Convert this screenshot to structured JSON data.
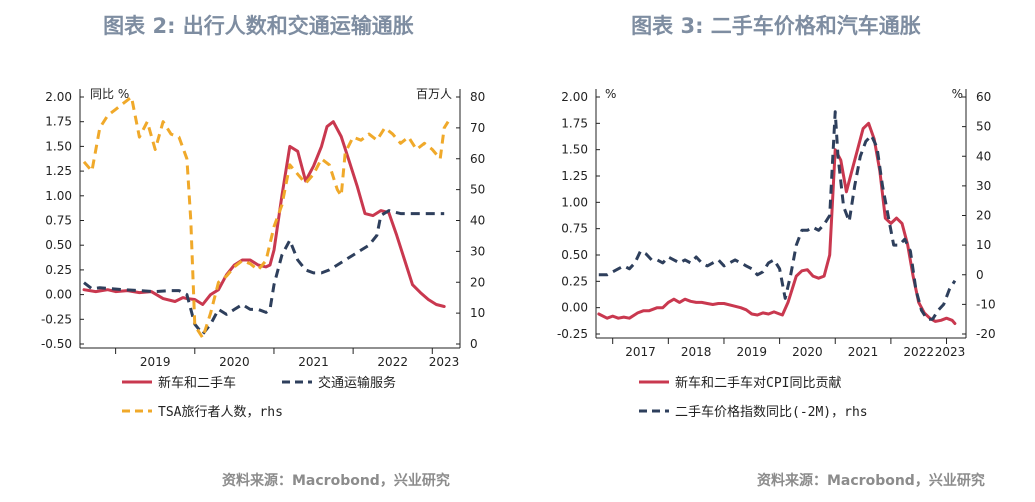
{
  "chart_data": [
    {
      "type": "line",
      "title": "图表 2:  出行人数和交通运输通胀",
      "source": "资料来源：Macrobond，兴业研究",
      "left_unit": "同比 %",
      "right_unit": "百万人",
      "ylim": [
        -0.5,
        2.0
      ],
      "y_ticks": [
        "2.00",
        "1.75",
        "1.50",
        "1.25",
        "1.00",
        "0.75",
        "0.50",
        "0.25",
        "0.00",
        "-0.25",
        "-0.50"
      ],
      "y2lim": [
        0,
        80
      ],
      "y2_ticks": [
        "80",
        "70",
        "60",
        "50",
        "40",
        "30",
        "20",
        "10",
        "0"
      ],
      "x_ticks": [
        "2019",
        "2020",
        "2021",
        "2022",
        "2023"
      ],
      "grid": false,
      "legend_position": "bottom",
      "series": [
        {
          "name": "新车和二手车",
          "axis": "left",
          "color": "#c9384f",
          "dash": "solid",
          "x": [
            2018.6,
            2018.75,
            2018.9,
            2019.0,
            2019.15,
            2019.3,
            2019.45,
            2019.6,
            2019.75,
            2019.85,
            2019.9,
            2020.0,
            2020.1,
            2020.2,
            2020.3,
            2020.4,
            2020.5,
            2020.6,
            2020.7,
            2020.8,
            2020.9,
            2020.95,
            2021.0,
            2021.1,
            2021.2,
            2021.3,
            2021.4,
            2021.5,
            2021.6,
            2021.67,
            2021.75,
            2021.85,
            2021.95,
            2022.05,
            2022.15,
            2022.25,
            2022.35,
            2022.45,
            2022.55,
            2022.65,
            2022.75,
            2022.85,
            2022.95,
            2023.05,
            2023.15
          ],
          "y": [
            0.05,
            0.03,
            0.05,
            0.03,
            0.04,
            0.02,
            0.03,
            -0.04,
            -0.07,
            -0.03,
            -0.04,
            -0.05,
            -0.1,
            0.0,
            0.05,
            0.2,
            0.3,
            0.35,
            0.35,
            0.3,
            0.28,
            0.3,
            0.45,
            1.0,
            1.5,
            1.45,
            1.15,
            1.3,
            1.5,
            1.7,
            1.75,
            1.6,
            1.35,
            1.1,
            0.82,
            0.8,
            0.85,
            0.83,
            0.6,
            0.35,
            0.1,
            0.02,
            -0.05,
            -0.1,
            -0.12
          ]
        },
        {
          "name": "交通运输服务",
          "axis": "left",
          "color": "#2e3f5c",
          "dash": "dashed",
          "x": [
            2018.6,
            2018.7,
            2018.8,
            2018.95,
            2019.1,
            2019.3,
            2019.5,
            2019.7,
            2019.8,
            2019.9,
            2020.0,
            2020.1,
            2020.2,
            2020.3,
            2020.4,
            2020.5,
            2020.6,
            2020.7,
            2020.8,
            2020.9,
            2020.95,
            2021.0,
            2021.1,
            2021.2,
            2021.3,
            2021.4,
            2021.5,
            2021.6,
            2021.7,
            2021.8,
            2021.9,
            2022.0,
            2022.1,
            2022.2,
            2022.3,
            2022.35,
            2022.45,
            2022.6,
            2022.8,
            2023.0,
            2023.15
          ],
          "y": [
            0.12,
            0.06,
            0.07,
            0.06,
            0.05,
            0.04,
            0.03,
            0.04,
            0.04,
            0.0,
            -0.3,
            -0.4,
            -0.3,
            -0.15,
            -0.2,
            -0.15,
            -0.1,
            -0.15,
            -0.15,
            -0.18,
            -0.15,
            0.1,
            0.4,
            0.55,
            0.35,
            0.25,
            0.22,
            0.22,
            0.25,
            0.3,
            0.35,
            0.4,
            0.45,
            0.5,
            0.6,
            0.8,
            0.85,
            0.82,
            0.82,
            0.82,
            0.82
          ]
        },
        {
          "name": "TSA旅行者人数，rhs",
          "axis": "right",
          "color": "#f0a92a",
          "dash": "dashed",
          "x": [
            2018.6,
            2018.7,
            2018.8,
            2018.9,
            2019.0,
            2019.1,
            2019.2,
            2019.3,
            2019.4,
            2019.5,
            2019.6,
            2019.7,
            2019.8,
            2019.9,
            2019.95,
            2020.0,
            2020.1,
            2020.2,
            2020.3,
            2020.4,
            2020.5,
            2020.6,
            2020.7,
            2020.8,
            2020.9,
            2021.0,
            2021.1,
            2021.2,
            2021.3,
            2021.4,
            2021.5,
            2021.6,
            2021.7,
            2021.8,
            2021.85,
            2021.9,
            2022.0,
            2022.1,
            2022.2,
            2022.3,
            2022.4,
            2022.5,
            2022.6,
            2022.7,
            2022.8,
            2022.9,
            2023.0,
            2023.1,
            2023.15,
            2023.2
          ],
          "y": [
            59,
            56,
            70,
            74,
            76,
            78,
            80,
            67,
            72,
            63,
            72,
            68,
            67,
            60,
            40,
            6,
            2,
            10,
            20,
            22,
            25,
            27,
            26,
            24,
            27,
            38,
            45,
            58,
            55,
            52,
            55,
            60,
            58,
            50,
            48,
            62,
            67,
            66,
            68,
            66,
            70,
            68,
            65,
            67,
            63,
            65,
            63,
            60,
            70,
            72
          ]
        }
      ]
    },
    {
      "type": "line",
      "title": "图表 3:  二手车价格和汽车通胀",
      "source": "资料来源：Macrobond，兴业研究",
      "left_unit": "%",
      "right_unit": "%",
      "ylim": [
        -0.25,
        2.0
      ],
      "y_ticks": [
        "2.00",
        "1.75",
        "1.50",
        "1.25",
        "1.00",
        "0.75",
        "0.50",
        "0.25",
        "0.00",
        "-0.25"
      ],
      "y2lim": [
        -20,
        60
      ],
      "y2_ticks": [
        "60",
        "50",
        "40",
        "30",
        "20",
        "10",
        "0",
        "-10",
        "-20"
      ],
      "x_ticks": [
        "2017",
        "2018",
        "2019",
        "2020",
        "2021",
        "2022",
        "2023"
      ],
      "grid": false,
      "legend_position": "bottom",
      "series": [
        {
          "name": "新车和二手车对CPI同比贡献",
          "axis": "left",
          "color": "#c9384f",
          "dash": "solid",
          "x": [
            2016.75,
            2016.9,
            2017.0,
            2017.1,
            2017.2,
            2017.3,
            2017.45,
            2017.55,
            2017.65,
            2017.8,
            2017.9,
            2018.0,
            2018.1,
            2018.2,
            2018.3,
            2018.4,
            2018.5,
            2018.6,
            2018.7,
            2018.8,
            2018.9,
            2019.0,
            2019.15,
            2019.3,
            2019.4,
            2019.5,
            2019.6,
            2019.7,
            2019.8,
            2019.9,
            2020.0,
            2020.05,
            2020.15,
            2020.3,
            2020.4,
            2020.5,
            2020.6,
            2020.7,
            2020.8,
            2020.9,
            2021.0,
            2021.1,
            2021.2,
            2021.3,
            2021.4,
            2021.5,
            2021.6,
            2021.7,
            2021.8,
            2021.9,
            2022.0,
            2022.1,
            2022.2,
            2022.3,
            2022.4,
            2022.5,
            2022.6,
            2022.7,
            2022.8,
            2022.9,
            2023.0,
            2023.1,
            2023.15
          ],
          "y": [
            -0.06,
            -0.1,
            -0.08,
            -0.1,
            -0.09,
            -0.1,
            -0.05,
            -0.03,
            -0.03,
            0.0,
            0.0,
            0.05,
            0.08,
            0.05,
            0.08,
            0.06,
            0.05,
            0.05,
            0.04,
            0.03,
            0.04,
            0.04,
            0.02,
            0.0,
            -0.02,
            -0.06,
            -0.07,
            -0.05,
            -0.06,
            -0.04,
            -0.06,
            -0.07,
            0.05,
            0.3,
            0.35,
            0.36,
            0.3,
            0.28,
            0.3,
            0.5,
            1.5,
            1.4,
            1.1,
            1.3,
            1.5,
            1.7,
            1.75,
            1.6,
            1.3,
            0.85,
            0.8,
            0.85,
            0.8,
            0.6,
            0.3,
            0.05,
            -0.05,
            -0.1,
            -0.13,
            -0.12,
            -0.1,
            -0.12,
            -0.15
          ]
        },
        {
          "name": "二手车价格指数同比(-2M)，rhs",
          "axis": "right",
          "color": "#2e3f5c",
          "dash": "dashed",
          "x": [
            2016.75,
            2016.9,
            2017.0,
            2017.1,
            2017.2,
            2017.3,
            2017.4,
            2017.5,
            2017.6,
            2017.7,
            2017.8,
            2017.9,
            2018.0,
            2018.1,
            2018.2,
            2018.3,
            2018.4,
            2018.5,
            2018.6,
            2018.7,
            2018.8,
            2018.9,
            2019.0,
            2019.1,
            2019.2,
            2019.3,
            2019.4,
            2019.5,
            2019.6,
            2019.7,
            2019.8,
            2019.9,
            2020.0,
            2020.1,
            2020.2,
            2020.3,
            2020.4,
            2020.5,
            2020.6,
            2020.7,
            2020.8,
            2020.9,
            2021.0,
            2021.05,
            2021.15,
            2021.25,
            2021.35,
            2021.45,
            2021.55,
            2021.65,
            2021.75,
            2021.85,
            2021.95,
            2022.05,
            2022.15,
            2022.25,
            2022.35,
            2022.45,
            2022.55,
            2022.65,
            2022.75,
            2022.85,
            2022.95,
            2023.05,
            2023.15
          ],
          "y": [
            0,
            0,
            1,
            2,
            3,
            2,
            4,
            8,
            7,
            5,
            5,
            4,
            6,
            5,
            4,
            5,
            4,
            6,
            4,
            3,
            4,
            5,
            3,
            4,
            5,
            4,
            3,
            2,
            0,
            1,
            4,
            5,
            2,
            -8,
            0,
            10,
            15,
            15,
            16,
            15,
            17,
            20,
            55,
            40,
            23,
            18,
            30,
            40,
            45,
            47,
            43,
            30,
            20,
            10,
            10,
            12,
            8,
            -5,
            -12,
            -15,
            -15,
            -12,
            -10,
            -5,
            -2
          ]
        }
      ]
    }
  ]
}
